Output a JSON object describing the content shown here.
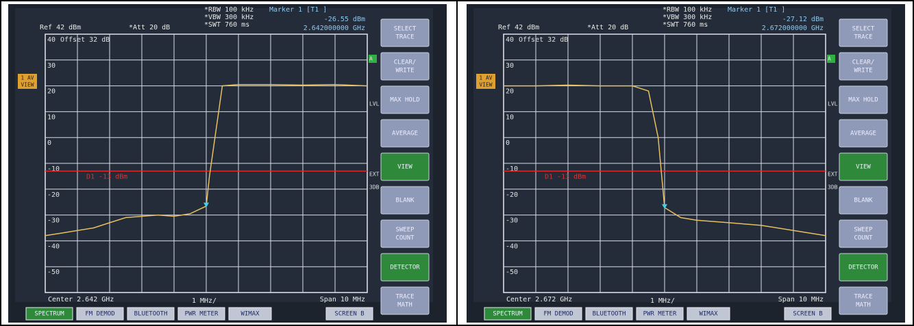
{
  "screens": [
    {
      "ref": "Ref 42 dBm",
      "att": "*Att 20 dB",
      "rbw": "*RBW 100 kHz",
      "vbw": "*VBW 300 kHz",
      "swt": "*SWT 760 ms",
      "marker_title": "Marker 1 [T1 ]",
      "offset": "Offset 32 dB",
      "center": "Center 2.642 GHz",
      "div": "1 MHz/",
      "span": "Span 10 MHz",
      "trace_tag": [
        "1 AV",
        "VIEW"
      ],
      "side": [
        "A",
        "LVL",
        "EXT",
        "3DB"
      ],
      "softkeys": [
        {
          "lines": [
            "SELECT",
            "TRACE"
          ],
          "active": false
        },
        {
          "lines": [
            "CLEAR/",
            "WRITE"
          ],
          "active": false
        },
        {
          "lines": [
            "MAX HOLD"
          ],
          "active": false
        },
        {
          "lines": [
            "AVERAGE"
          ],
          "active": false
        },
        {
          "lines": [
            "VIEW"
          ],
          "active": true
        },
        {
          "lines": [
            "BLANK"
          ],
          "active": false
        },
        {
          "lines": [
            "SWEEP",
            "COUNT"
          ],
          "active": false
        },
        {
          "lines": [
            "DETECTOR"
          ],
          "active": true
        },
        {
          "lines": [
            "TRACE",
            "MATH"
          ],
          "active": false
        }
      ],
      "buttons": [
        {
          "label": "SPECTRUM",
          "active": true
        },
        {
          "label": "FM DEMOD",
          "active": false
        },
        {
          "label": "BLUETOOTH",
          "active": false
        },
        {
          "label": "PWR METER",
          "active": false
        },
        {
          "label": "WIMAX",
          "active": false
        },
        {
          "label": "SCREEN B",
          "active": false
        }
      ]
    },
    {
      "ref": "Ref 42 dBm",
      "att": "*Att 20 dB",
      "rbw": "*RBW 100 kHz",
      "vbw": "*VBW 300 kHz",
      "swt": "*SWT 760 ms",
      "marker_title": "Marker 1 [T1 ]",
      "offset": "Offset 32 dB",
      "center": "Center 2.672 GHz",
      "div": "1 MHz/",
      "span": "Span 10 MHz",
      "trace_tag": [
        "1 AV",
        "VIEW"
      ],
      "side": [
        "A",
        "LVL",
        "EXT",
        "3DB"
      ],
      "softkeys": [
        {
          "lines": [
            "SELECT",
            "TRACE"
          ],
          "active": false
        },
        {
          "lines": [
            "CLEAR/",
            "WRITE"
          ],
          "active": false
        },
        {
          "lines": [
            "MAX HOLD"
          ],
          "active": false
        },
        {
          "lines": [
            "AVERAGE"
          ],
          "active": false
        },
        {
          "lines": [
            "VIEW"
          ],
          "active": true
        },
        {
          "lines": [
            "BLANK"
          ],
          "active": false
        },
        {
          "lines": [
            "SWEEP",
            "COUNT"
          ],
          "active": false
        },
        {
          "lines": [
            "DETECTOR"
          ],
          "active": true
        },
        {
          "lines": [
            "TRACE",
            "MATH"
          ],
          "active": false
        }
      ],
      "buttons": [
        {
          "label": "SPECTRUM",
          "active": true
        },
        {
          "label": "FM DEMOD",
          "active": false
        },
        {
          "label": "BLUETOOTH",
          "active": false
        },
        {
          "label": "PWR METER",
          "active": false
        },
        {
          "label": "WIMAX",
          "active": false
        },
        {
          "label": "SCREEN B",
          "active": false
        }
      ]
    }
  ],
  "chart_data": [
    {
      "type": "line",
      "color": "#e8c060",
      "x": [
        2.637,
        2.6375,
        2.638,
        2.6385,
        2.639,
        2.6395,
        2.64,
        2.6405,
        2.641,
        2.6415,
        2.642,
        2.6421,
        2.6425,
        2.643,
        2.644,
        2.645,
        2.646,
        2.647
      ],
      "values": [
        -38,
        -37,
        -36,
        -35,
        -33,
        -31,
        -30.5,
        -30,
        -30.5,
        -29.5,
        -26.55,
        -15,
        20,
        20.5,
        20.5,
        20.3,
        20.5,
        20
      ],
      "xlim": [
        2.637,
        2.647
      ],
      "ylim": [
        -60,
        40
      ],
      "yticks": [
        40,
        30,
        20,
        10,
        0,
        -10,
        -20,
        -30,
        -40,
        -50
      ],
      "grid": true,
      "threshold": -13,
      "threshold_label": "D1 -13 dBm",
      "marker": {
        "x": 2.642,
        "value": -26.55,
        "value_label": "-26.55 dBm",
        "x_label": "2.642000000 GHz"
      }
    },
    {
      "type": "line",
      "color": "#e8c060",
      "x": [
        2.667,
        2.668,
        2.669,
        2.67,
        2.671,
        2.6715,
        2.6718,
        2.672,
        2.6725,
        2.673,
        2.674,
        2.675,
        2.676,
        2.677
      ],
      "values": [
        20,
        20,
        20.3,
        20,
        20,
        18,
        0,
        -27.12,
        -31,
        -32,
        -33,
        -34,
        -36,
        -38
      ],
      "xlim": [
        2.667,
        2.677
      ],
      "ylim": [
        -60,
        40
      ],
      "yticks": [
        40,
        30,
        20,
        10,
        0,
        -10,
        -20,
        -30,
        -40,
        -50
      ],
      "grid": true,
      "threshold": -13,
      "threshold_label": "D1 -13 dBm",
      "marker": {
        "x": 2.672,
        "value": -27.12,
        "value_label": "-27.12 dBm",
        "x_label": "2.672000000 GHz"
      }
    }
  ]
}
